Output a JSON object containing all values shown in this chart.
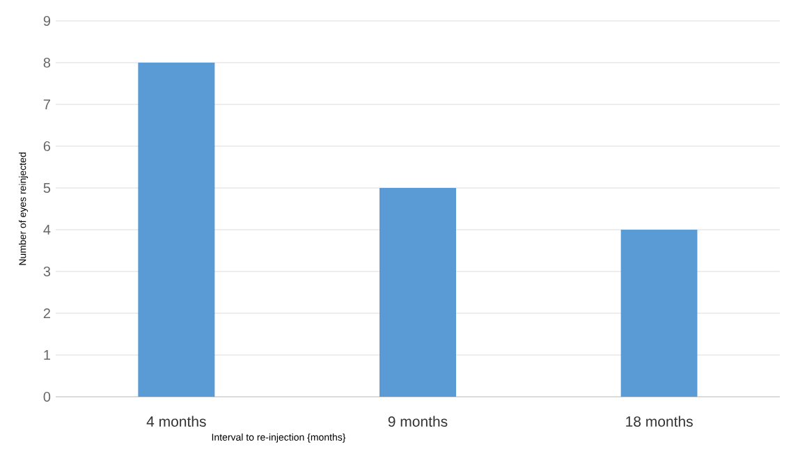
{
  "chart_data": {
    "type": "bar",
    "categories": [
      "4 months",
      "9 months",
      "18 months"
    ],
    "values": [
      8,
      5,
      4
    ],
    "color": "#5b9bd5",
    "xlabel": "Interval to re-injection {months}",
    "ylabel": "Number of eyes reinjected",
    "ylim": [
      0,
      9
    ],
    "yticks": [
      0,
      1,
      2,
      3,
      4,
      5,
      6,
      7,
      8,
      9
    ],
    "grid": "y"
  }
}
